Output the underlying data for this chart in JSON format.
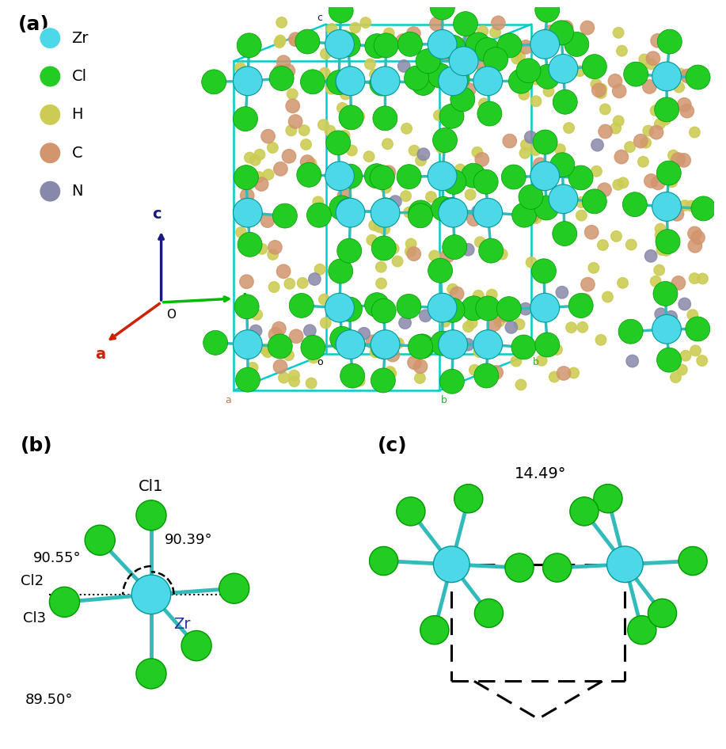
{
  "atom_colors": {
    "Zr": "#4DD8E8",
    "Cl": "#22CC22",
    "H": "#CCCC55",
    "C": "#D2956E",
    "N": "#8888AA"
  },
  "legend_labels": [
    "Zr",
    "Cl",
    "H",
    "C",
    "N"
  ],
  "panel_a_label": "(a)",
  "panel_b_label": "(b)",
  "panel_c_label": "(c)",
  "angle_b_top_left": "90.55°",
  "angle_b_top_right": "90.39°",
  "angle_b_bottom": "89.50°",
  "angle_c_top": "14.49°",
  "label_Cl1": "Cl1",
  "label_Cl2": "Cl2",
  "label_Cl3": "Cl3",
  "label_Zr": "Zr",
  "bg_color": "#ffffff",
  "cell_color": "#00CCCC",
  "bond_color": "#33BBBB",
  "axis_c_color": "#1a1a7e",
  "axis_b_color": "#00BB00",
  "axis_a_color": "#CC2200"
}
